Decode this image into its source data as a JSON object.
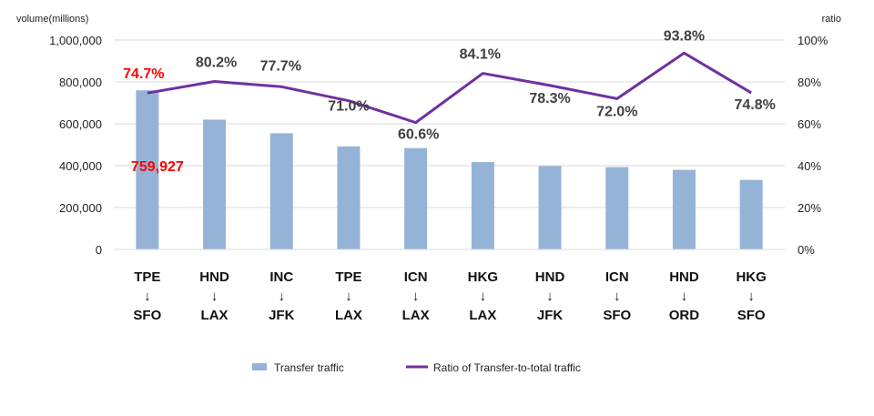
{
  "chart_data": {
    "type": "bar",
    "combo": "bar+line (dual axis)",
    "categories": [
      [
        "TPE",
        "↓",
        "SFO"
      ],
      [
        "HND",
        "↓",
        "LAX"
      ],
      [
        "INC",
        "↓",
        "JFK"
      ],
      [
        "TPE",
        "↓",
        "LAX"
      ],
      [
        "ICN",
        "↓",
        "LAX"
      ],
      [
        "HKG",
        "↓",
        "LAX"
      ],
      [
        "HND",
        "↓",
        "JFK"
      ],
      [
        "ICN",
        "↓",
        "SFO"
      ],
      [
        "HND",
        "↓",
        "ORD"
      ],
      [
        "HKG",
        "↓",
        "SFO"
      ]
    ],
    "series": [
      {
        "name": "Transfer traffic",
        "type": "bar",
        "axis": "left",
        "color": "#95B3D7",
        "values": [
          759927,
          620000,
          555000,
          492000,
          484000,
          417000,
          398000,
          393000,
          380000,
          332000
        ]
      },
      {
        "name": "Ratio of Transfer-to-total traffic",
        "type": "line",
        "axis": "right",
        "color": "#7030A0",
        "values": [
          74.7,
          80.2,
          77.7,
          71.0,
          60.6,
          84.1,
          78.3,
          72.0,
          93.8,
          74.8
        ],
        "labels": [
          "74.7%",
          "80.2%",
          "77.7%",
          "71.0%",
          "60.6%",
          "84.1%",
          "78.3%",
          "72.0%",
          "93.8%",
          "74.8%"
        ]
      }
    ],
    "highlight": {
      "index": 0,
      "value_label": "759,927",
      "color": "#FF0000"
    },
    "y_left": {
      "label": "volume(millions)",
      "range": [
        0,
        1000000
      ],
      "ticks": [
        0,
        200000,
        400000,
        600000,
        800000,
        1000000
      ],
      "tick_labels": [
        "0",
        "200,000",
        "400,000",
        "600,000",
        "800,000",
        "1,000,000"
      ]
    },
    "y_right": {
      "label": "ratio",
      "range": [
        0,
        100
      ],
      "ticks": [
        0,
        20,
        40,
        60,
        80,
        100
      ],
      "tick_labels": [
        "0%",
        "20%",
        "40%",
        "60%",
        "80%",
        "100%"
      ]
    },
    "grid": true,
    "gridline_color": "#D9D9D9",
    "legend": {
      "position": "bottom",
      "items": [
        "Transfer traffic",
        "Ratio of Transfer-to-total traffic"
      ]
    }
  }
}
